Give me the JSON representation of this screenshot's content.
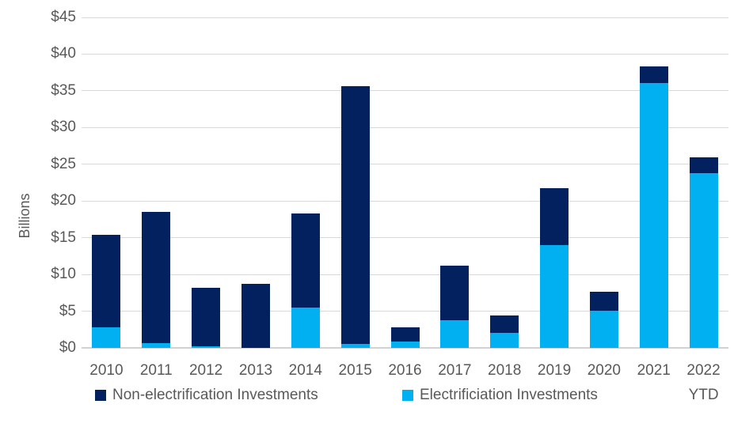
{
  "chart_data": {
    "type": "bar",
    "stacked": true,
    "title": "",
    "ylabel": "Billions",
    "xlabel": "",
    "ylim": [
      0,
      45
    ],
    "ytick_step": 5,
    "ytick_labels": [
      "$0",
      "$5",
      "$10",
      "$15",
      "$20",
      "$25",
      "$30",
      "$35",
      "$40",
      "$45"
    ],
    "categories": [
      "2010",
      "2011",
      "2012",
      "2013",
      "2014",
      "2015",
      "2016",
      "2017",
      "2018",
      "2019",
      "2020",
      "2021",
      "2022"
    ],
    "category_sublabels": [
      "",
      "",
      "",
      "",
      "",
      "",
      "",
      "",
      "",
      "",
      "",
      "",
      "YTD"
    ],
    "series": [
      {
        "name": "Non-electrification Investments",
        "color": "#03215f",
        "values": [
          12.6,
          17.9,
          8.0,
          8.7,
          12.8,
          35.1,
          1.9,
          7.4,
          2.3,
          7.8,
          2.6,
          2.2,
          2.1
        ]
      },
      {
        "name": "Electrificiation Investments",
        "color": "#00b0f0",
        "values": [
          2.8,
          0.6,
          0.2,
          0.0,
          5.5,
          0.5,
          0.9,
          3.8,
          2.1,
          14.0,
          5.1,
          36.1,
          23.8
        ]
      }
    ],
    "totals": [
      15.4,
      18.5,
      8.2,
      8.7,
      18.3,
      35.6,
      2.8,
      11.2,
      4.4,
      21.8,
      7.7,
      38.3,
      25.9
    ],
    "grid": true,
    "legend_position": "bottom",
    "gridline_color": "#d9d9d9",
    "axis_text_color": "#595959"
  }
}
